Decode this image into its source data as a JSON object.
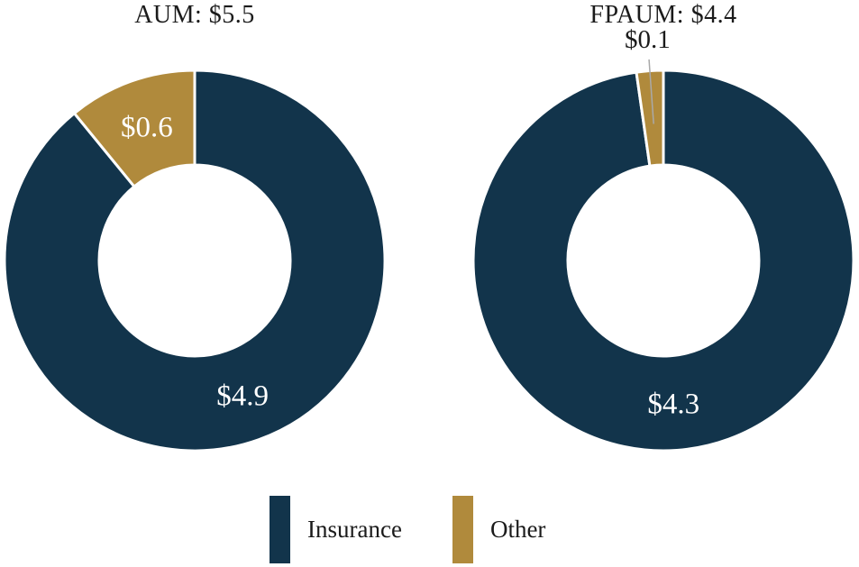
{
  "page": {
    "background": "#ffffff"
  },
  "styles": {
    "slice_gap_color": "#ffffff",
    "inside_label_color": "#ffffff",
    "outside_label_color": "#1b1b1b",
    "title_color": "#1b1b1b",
    "leader_line_color": "#a9a9a9",
    "legend_text_color": "#1b1b1b"
  },
  "legend": {
    "position": "bottom",
    "items": [
      {
        "label": "Insurance",
        "color": "#12344B"
      },
      {
        "label": "Other",
        "color": "#B08A3C"
      }
    ]
  },
  "chart_data": [
    {
      "type": "pie",
      "subtype": "donut",
      "title": "AUM: $5.5",
      "total": 5.5,
      "categories": [
        "Insurance",
        "Other"
      ],
      "values": [
        4.9,
        0.6
      ],
      "slice_labels": [
        "$4.9",
        "$0.6"
      ],
      "slice_colors": [
        "#12344B",
        "#B08A3C"
      ],
      "label_placements": [
        "inside",
        "inside"
      ],
      "start_angle_deg": 0,
      "direction": "clockwise",
      "legend_position": "bottom"
    },
    {
      "type": "pie",
      "subtype": "donut",
      "title": "FPAUM: $4.4",
      "total": 4.4,
      "categories": [
        "Insurance",
        "Other"
      ],
      "values": [
        4.3,
        0.1
      ],
      "slice_labels": [
        "$4.3",
        "$0.1"
      ],
      "slice_colors": [
        "#12344B",
        "#B08A3C"
      ],
      "label_placements": [
        "inside",
        "outside_leader"
      ],
      "start_angle_deg": 0,
      "direction": "clockwise",
      "legend_position": "bottom"
    }
  ]
}
